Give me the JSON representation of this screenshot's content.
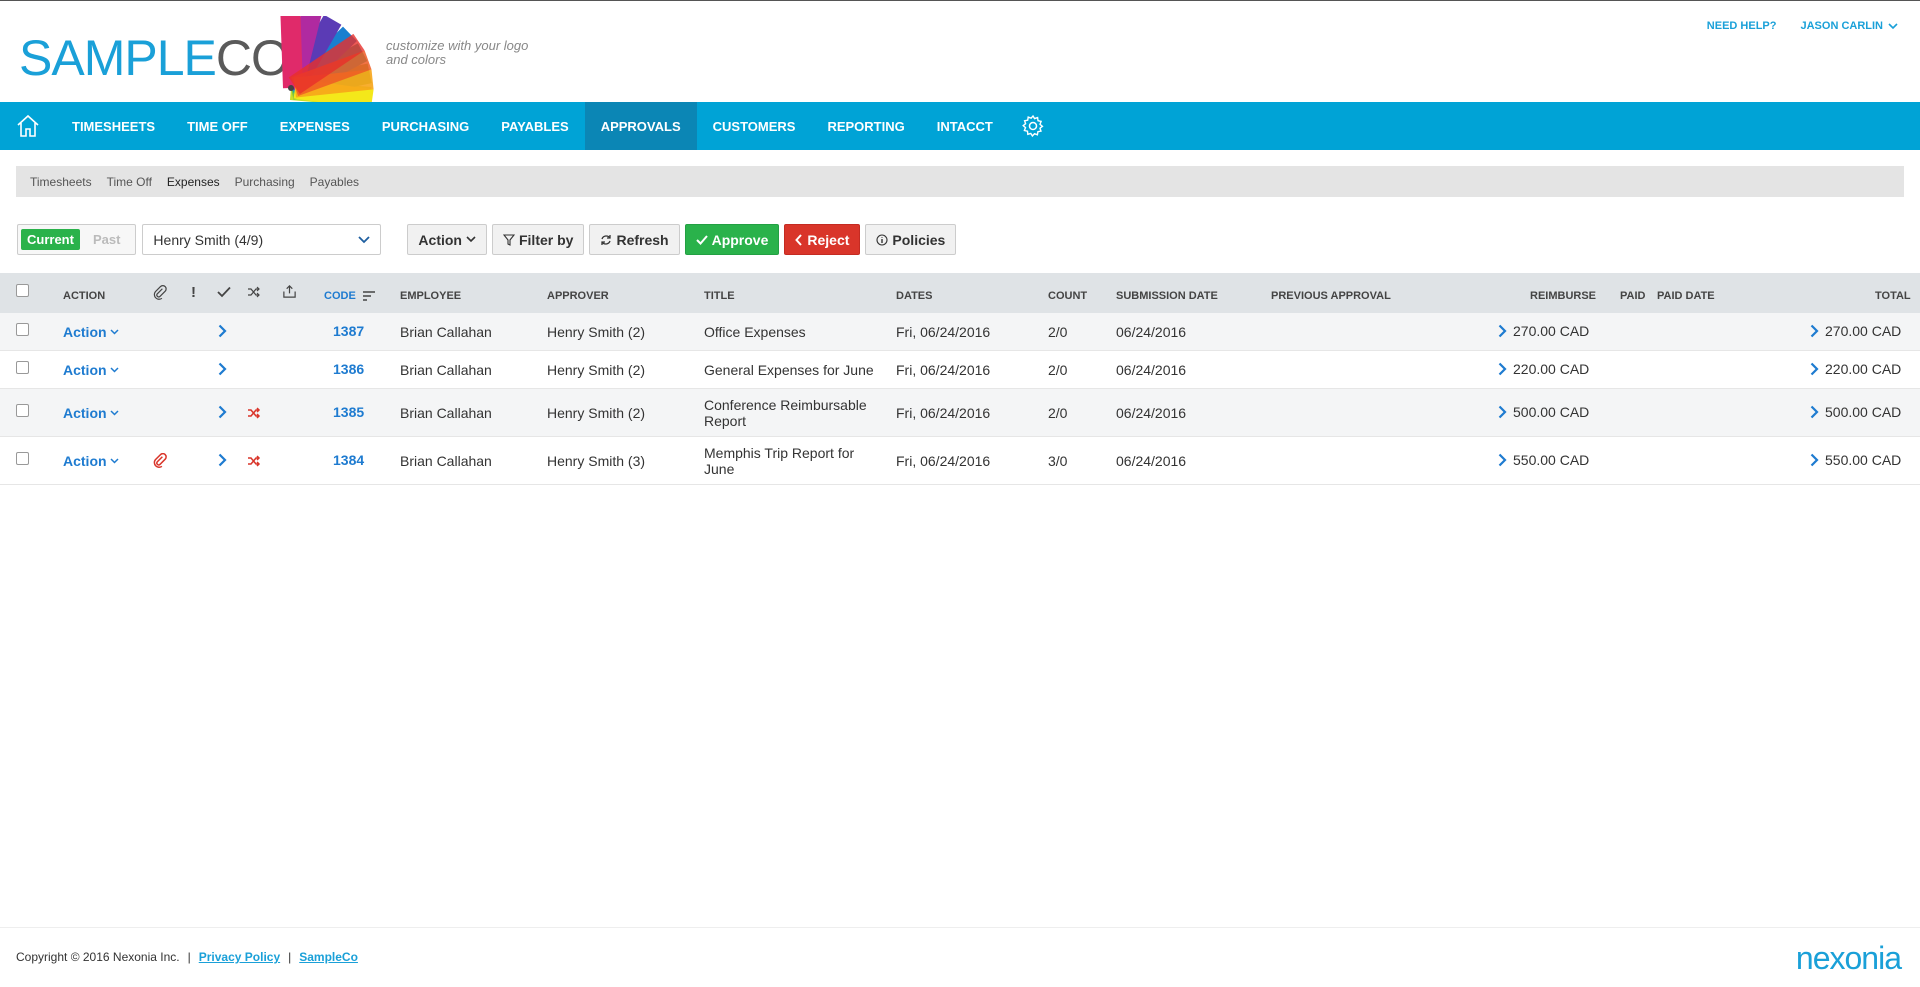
{
  "logo": {
    "part1": "SAMPLE",
    "part2": "CO",
    "tagline": "customize with your logo and colors"
  },
  "header_links": {
    "help": "NEED HELP?",
    "user": "JASON CARLIN"
  },
  "nav": {
    "items": [
      "TIMESHEETS",
      "TIME OFF",
      "EXPENSES",
      "PURCHASING",
      "PAYABLES",
      "APPROVALS",
      "CUSTOMERS",
      "REPORTING",
      "INTACCT"
    ],
    "active": "APPROVALS"
  },
  "subnav": {
    "items": [
      "Timesheets",
      "Time Off",
      "Expenses",
      "Purchasing",
      "Payables"
    ],
    "active": "Expenses"
  },
  "toolbar": {
    "current": "Current",
    "past": "Past",
    "approver_select": "Henry Smith (4/9)",
    "action": "Action",
    "filter": "Filter by",
    "refresh": "Refresh",
    "approve": "Approve",
    "reject": "Reject",
    "policies": "Policies"
  },
  "table": {
    "headers": {
      "action": "ACTION",
      "code": "CODE",
      "employee": "EMPLOYEE",
      "approver": "APPROVER",
      "title": "TITLE",
      "dates": "DATES",
      "count": "COUNT",
      "submission_date": "SUBMISSION DATE",
      "previous_approval": "PREVIOUS APPROVAL",
      "reimburse": "REIMBURSE",
      "paid": "PAID",
      "paid_date": "PAID DATE",
      "total": "TOTAL"
    },
    "rows": [
      {
        "action": "Action",
        "code": "1387",
        "employee": "Brian Callahan",
        "approver": "Henry Smith (2)",
        "title_line1": "Office Expenses",
        "title_line2": "",
        "dates": "Fri, 06/24/2016",
        "count": "2/0",
        "submission_date": "06/24/2016",
        "reimburse": "270.00 CAD",
        "total": "270.00 CAD",
        "attachment": false,
        "shuffle": false
      },
      {
        "action": "Action",
        "code": "1386",
        "employee": "Brian Callahan",
        "approver": "Henry Smith (2)",
        "title_line1": "General Expenses for June",
        "title_line2": "",
        "dates": "Fri, 06/24/2016",
        "count": "2/0",
        "submission_date": "06/24/2016",
        "reimburse": "220.00 CAD",
        "total": "220.00 CAD",
        "attachment": false,
        "shuffle": false
      },
      {
        "action": "Action",
        "code": "1385",
        "employee": "Brian Callahan",
        "approver": "Henry Smith (2)",
        "title_line1": "Conference Reimbursable",
        "title_line2": "Report",
        "dates": "Fri, 06/24/2016",
        "count": "2/0",
        "submission_date": "06/24/2016",
        "reimburse": "500.00 CAD",
        "total": "500.00 CAD",
        "attachment": false,
        "shuffle": true
      },
      {
        "action": "Action",
        "code": "1384",
        "employee": "Brian Callahan",
        "approver": "Henry Smith (3)",
        "title_line1": "Memphis Trip Report for",
        "title_line2": "June",
        "dates": "Fri, 06/24/2016",
        "count": "3/0",
        "submission_date": "06/24/2016",
        "reimburse": "550.00 CAD",
        "total": "550.00 CAD",
        "attachment": true,
        "shuffle": true
      }
    ]
  },
  "footer": {
    "copyright": "Copyright © 2016 Nexonia Inc.",
    "sep": "|",
    "privacy": "Privacy Policy",
    "company": "SampleCo",
    "brand": "nexonia"
  },
  "colors": {
    "primary": "#00a3d6",
    "nav_active": "#0b86b5",
    "approve": "#2ab24b",
    "reject": "#d9352a",
    "link": "#1e7bd0"
  }
}
